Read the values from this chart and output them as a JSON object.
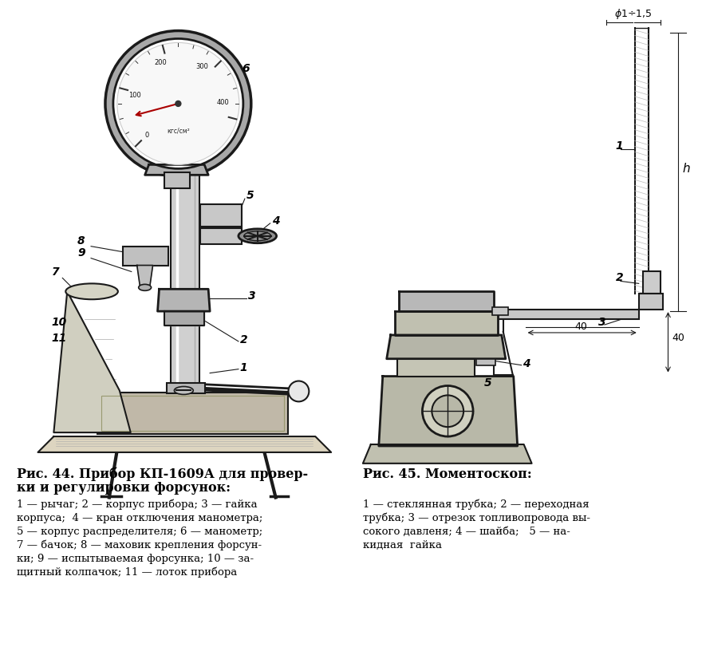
{
  "bg_color": "#ffffff",
  "fig_width": 8.8,
  "fig_height": 8.21,
  "caption_left_title_1": "Рис. 44. Прибор КП-1609А для провер-",
  "caption_left_title_2": "ки и регулировки форсунок:",
  "caption_left_body": "1 — рычаг; 2 — корпус прибора; 3 — гайка\nкорпуса;  4 — кран отключения манометра;\n5 — корпус распределителя; 6 — манометр;\n7 — бачок; 8 — маховик крепления форсун-\nки; 9 — испытываемая форсунка; 10 — за-\nщитный колпачок; 11 — лоток прибора",
  "caption_right_title": "Рис. 45. Моментоскоп:",
  "caption_right_body": "1 — стеклянная трубка; 2 — переходная\nтрубка; 3 — отрезок топливопровода вы-\nсокого давленя; 4 — шайба;   5 — на-\nкидная  гайка",
  "text_color": "#000000",
  "line_color": "#1a1a1a"
}
